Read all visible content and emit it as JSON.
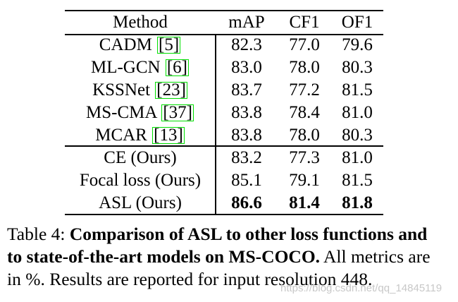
{
  "table": {
    "headers": [
      "Method",
      "mAP",
      "CF1",
      "OF1"
    ],
    "rows_group1": [
      {
        "method": "CADM",
        "ref": "5",
        "map": "82.3",
        "cf1": "77.0",
        "of1": "79.6"
      },
      {
        "method": "ML-GCN",
        "ref": "6",
        "map": "83.0",
        "cf1": "78.0",
        "of1": "80.3"
      },
      {
        "method": "KSSNet",
        "ref": "23",
        "map": "83.7",
        "cf1": "77.2",
        "of1": "81.5"
      },
      {
        "method": "MS-CMA",
        "ref": "37",
        "map": "83.8",
        "cf1": "78.4",
        "of1": "81.0"
      },
      {
        "method": "MCAR",
        "ref": "13",
        "map": "83.8",
        "cf1": "78.0",
        "of1": "80.3"
      }
    ],
    "rows_group2": [
      {
        "method": "CE (Ours)",
        "map": "83.2",
        "cf1": "77.3",
        "of1": "81.0"
      },
      {
        "method": "Focal loss (Ours)",
        "map": "85.1",
        "cf1": "79.1",
        "of1": "81.5"
      },
      {
        "method": "ASL (Ours)",
        "map": "86.6",
        "cf1": "81.4",
        "of1": "81.8"
      }
    ]
  },
  "caption": {
    "label": "Table 4:",
    "bold_line1": "Comparison of ASL to other loss functions and",
    "bold_line2": "to state-of-the-art models on MS-COCO.",
    "rest_line2": "All metrics are",
    "line3": "in %. Results are reported for input resolution 448."
  },
  "watermark": "https://blog.csdn.net/qq_14845119"
}
